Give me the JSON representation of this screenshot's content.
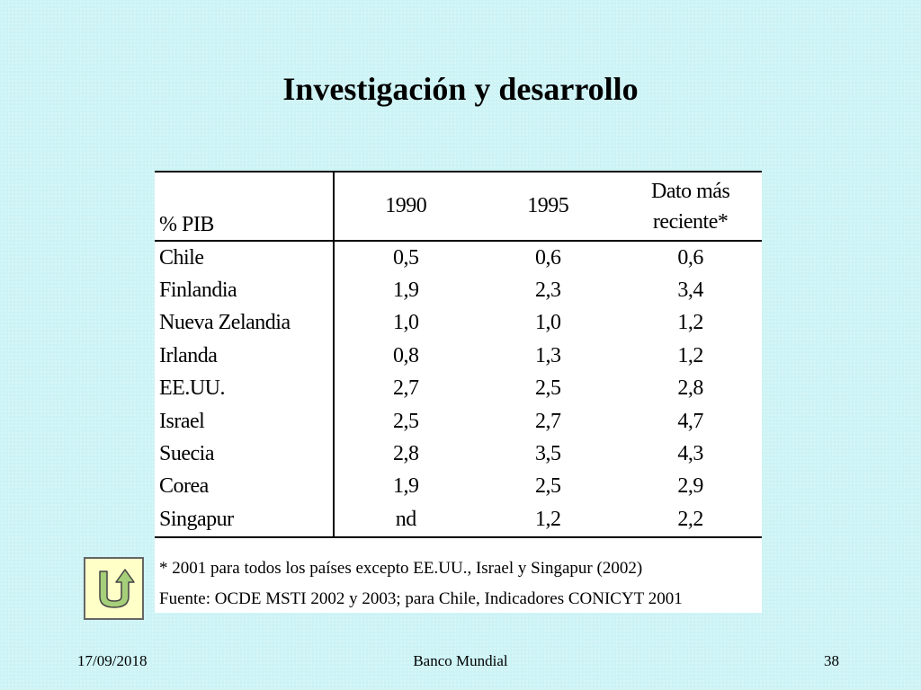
{
  "slide": {
    "title": "Investigación y desarrollo"
  },
  "table": {
    "headers": {
      "label": "% PIB",
      "col1": "1990",
      "col2": "1995",
      "col3_line1": "Dato más",
      "col3_line2": "reciente*"
    },
    "rows": [
      {
        "country": "Chile",
        "v1990": "0,5",
        "v1995": "0,6",
        "recent": "0,6"
      },
      {
        "country": "Finlandia",
        "v1990": "1,9",
        "v1995": "2,3",
        "recent": "3,4"
      },
      {
        "country": "Nueva Zelandia",
        "v1990": "1,0",
        "v1995": "1,0",
        "recent": "1,2"
      },
      {
        "country": "Irlanda",
        "v1990": "0,8",
        "v1995": "1,3",
        "recent": "1,2"
      },
      {
        "country": "EE.UU.",
        "v1990": "2,7",
        "v1995": "2,5",
        "recent": "2,8"
      },
      {
        "country": "Israel",
        "v1990": "2,5",
        "v1995": "2,7",
        "recent": "4,7"
      },
      {
        "country": "Suecia",
        "v1990": "2,8",
        "v1995": "3,5",
        "recent": "4,3"
      },
      {
        "country": "Corea",
        "v1990": "1,9",
        "v1995": "2,5",
        "recent": "2,9"
      },
      {
        "country": "Singapur",
        "v1990": "nd",
        "v1995": "1,2",
        "recent": "2,2"
      }
    ],
    "footnote": "* 2001 para todos los países excepto EE.UU., Israel y Singapur (2002)",
    "source": "Fuente: OCDE MSTI 2002 y 2003; para Chile, Indicadores CONICYT 2001"
  },
  "nav": {
    "back_icon": "u-turn-back-icon"
  },
  "footer": {
    "date": "17/09/2018",
    "center": "Banco Mundial",
    "page_number": "38"
  }
}
